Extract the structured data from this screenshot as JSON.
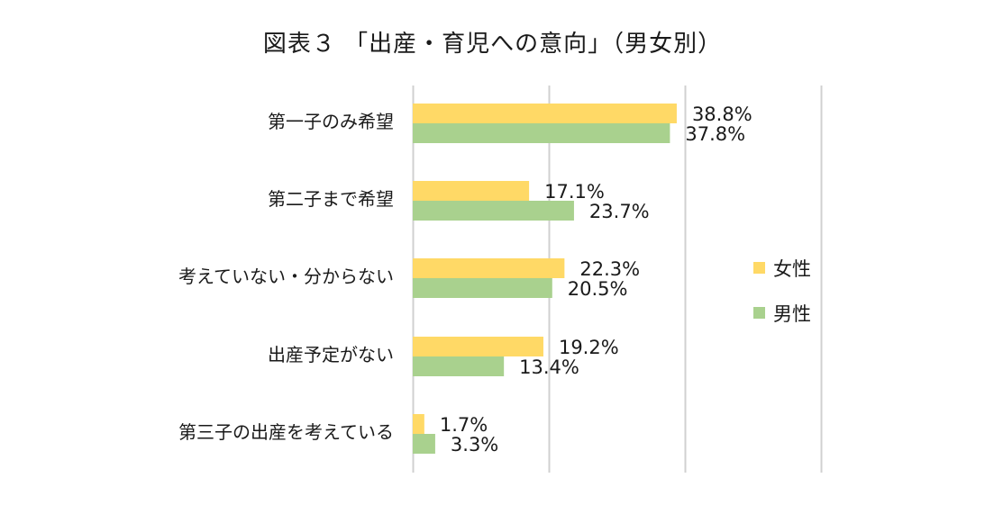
{
  "chart_data": {
    "type": "bar",
    "orientation": "horizontal",
    "title": "図表３ 「出産・育児への意向」（男女別）",
    "categories": [
      "第一子のみ希望",
      "第二子まで希望",
      "考えていない・分からない",
      "出産予定がない",
      "第三子の出産を考えている"
    ],
    "series": [
      {
        "name": "女性",
        "color": "#FFD966",
        "values": [
          38.8,
          17.1,
          22.3,
          19.2,
          1.7
        ],
        "labels": [
          "38.8%",
          "17.1%",
          "22.3%",
          "19.2%",
          "1.7%"
        ]
      },
      {
        "name": "男性",
        "color": "#A9D18E",
        "values": [
          37.8,
          23.7,
          20.5,
          13.4,
          3.3
        ],
        "labels": [
          "37.8%",
          "23.7%",
          "20.5%",
          "13.4%",
          "3.3%"
        ]
      }
    ],
    "xlim": [
      0,
      60
    ],
    "gridlines": [
      0,
      20,
      40,
      60
    ],
    "grid": true,
    "legend": "right",
    "xlabel": "",
    "ylabel": ""
  }
}
